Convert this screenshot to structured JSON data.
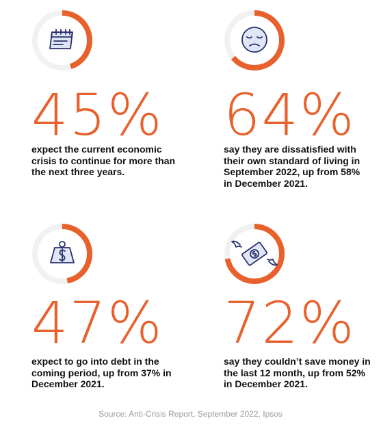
{
  "accent_color": "#e8602c",
  "track_color": "#f1f1f1",
  "stats": [
    {
      "icon": "calendar-icon",
      "ring_fraction": 0.45,
      "value": "45%",
      "description": "expect the current economic crisis to continue for more than the next three years."
    },
    {
      "icon": "sad-face-icon",
      "ring_fraction": 0.64,
      "value": "64%",
      "description": "say they are dissatisfied with their own standard of living in September 2022, up from 58% in December 2021."
    },
    {
      "icon": "money-weight-icon",
      "ring_fraction": 0.47,
      "value": "47%",
      "description": "expect to go into debt in the coming period, up from 37% in December 2021."
    },
    {
      "icon": "flying-money-icon",
      "ring_fraction": 0.72,
      "value": "72%",
      "description": "say they couldn’t save money in the last 12 month, up from 52% in December 2021."
    }
  ],
  "source": "Source: Anti-Crisis Report, September 2022, Ipsos"
}
